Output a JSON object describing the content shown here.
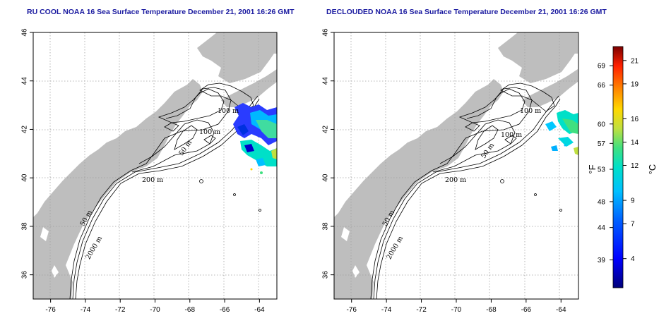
{
  "titles": {
    "left": "RU COOL NOAA 16 Sea Surface Temperature December 21, 2001 16:26 GMT",
    "right": "DECLOUDED NOAA 16 Sea Surface Temperature December 21, 2001 16:26 GMT"
  },
  "map": {
    "lon_ticks": [
      "-76",
      "-74",
      "-72",
      "-70",
      "-68",
      "-66",
      "-64"
    ],
    "lat_ticks": [
      "36",
      "38",
      "40",
      "42",
      "44",
      "46"
    ],
    "lon_range": [
      -77,
      -63
    ],
    "lat_range": [
      35,
      46
    ],
    "contour_labels": [
      "100 m",
      "100 m",
      "50 m",
      "200 m",
      "50 m",
      "2000 m"
    ],
    "land_color": "#bebebe",
    "ocean_color": "#ffffff",
    "grid": "dotted"
  },
  "colorbar": {
    "fahrenheit_label": "°F",
    "celsius_label": "°C",
    "fahrenheit_ticks": [
      "69",
      "66",
      "60",
      "57",
      "53",
      "48",
      "44",
      "39"
    ],
    "celsius_ticks": [
      "21",
      "19",
      "16",
      "14",
      "12",
      "9",
      "7",
      "4"
    ],
    "colors": [
      "#00008b",
      "#0000ff",
      "#0070ff",
      "#00c8ff",
      "#00e0c0",
      "#40e080",
      "#c0e040",
      "#ffe000",
      "#ff9000",
      "#ff3000",
      "#c00000",
      "#800000"
    ]
  }
}
